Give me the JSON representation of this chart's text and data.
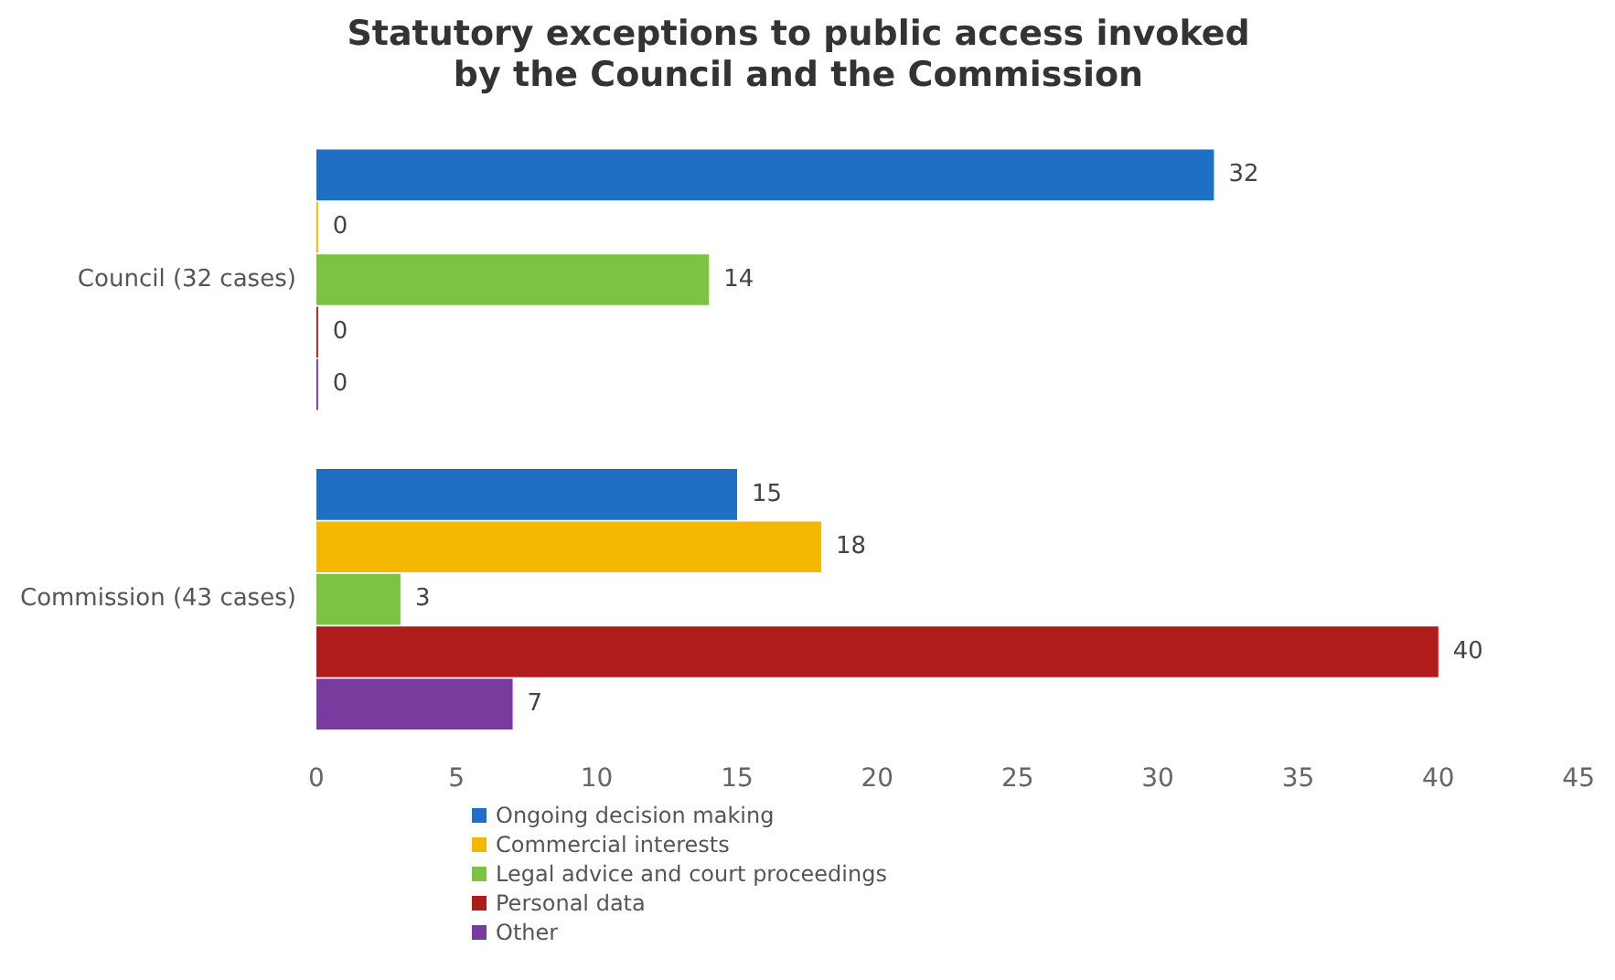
{
  "chart_data": {
    "type": "bar",
    "orientation": "horizontal",
    "title": "Statutory exceptions to public access invoked by the Council and the Commission",
    "categories": [
      "Council (32 cases)",
      "Commission (43 cases)"
    ],
    "series": [
      {
        "name": "Ongoing decision making",
        "color": "#1f6fc5",
        "values": [
          32,
          15
        ]
      },
      {
        "name": "Commercial interests",
        "color": "#f5b800",
        "values": [
          0,
          18
        ]
      },
      {
        "name": "Legal advice and court proceedings",
        "color": "#7dc242",
        "values": [
          14,
          3
        ]
      },
      {
        "name": "Personal data",
        "color": "#b01c1c",
        "values": [
          0,
          40
        ]
      },
      {
        "name": "Other",
        "color": "#7a3b9e",
        "values": [
          0,
          7
        ]
      }
    ],
    "xlim": [
      0,
      45
    ],
    "xticks": [
      0,
      5,
      10,
      15,
      20,
      25,
      30,
      35,
      40,
      45
    ],
    "grid": false,
    "legend": "bottom",
    "data_labels": true
  }
}
